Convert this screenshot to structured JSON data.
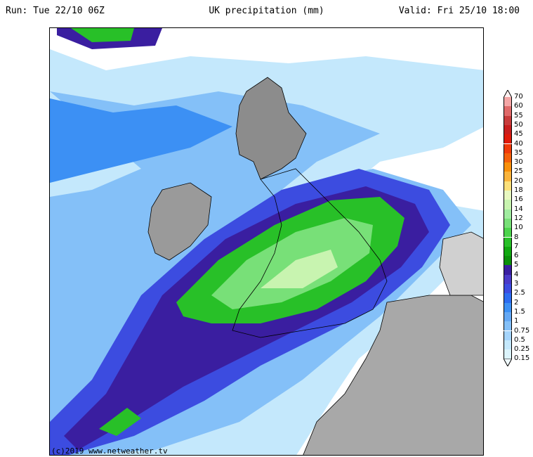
{
  "header": {
    "run": "Run: Tue 22/10 06Z",
    "title": "UK precipitation (mm)",
    "valid": "Valid: Fri 25/10 18:00"
  },
  "credit": "(c)2019 www.netweather.tv",
  "legend": {
    "levels": [
      "70",
      "60",
      "55",
      "50",
      "45",
      "40",
      "35",
      "30",
      "25",
      "20",
      "18",
      "16",
      "14",
      "12",
      "10",
      "8",
      "7",
      "6",
      "5",
      "4",
      "3",
      "2.5",
      "2",
      "1.5",
      "1",
      "0.75",
      "0.5",
      "0.25",
      "0.15"
    ],
    "colors": [
      "#f4a6a6",
      "#e06a6a",
      "#c83c3c",
      "#c81e1e",
      "#e01a0a",
      "#f03a0a",
      "#f4600a",
      "#f8900a",
      "#fab43c",
      "#fce07a",
      "#e8f8c0",
      "#c8f4b0",
      "#a0ecA0",
      "#78e078",
      "#4cd44c",
      "#28c028",
      "#10a810",
      "#0a900a",
      "#3a1ea0",
      "#4a3ac8",
      "#3c4ce0",
      "#2c6cf0",
      "#3c90f4",
      "#64a8f4",
      "#84c0f8",
      "#a4d4fc",
      "#c4e8fc",
      "#dcf4fc"
    ]
  }
}
